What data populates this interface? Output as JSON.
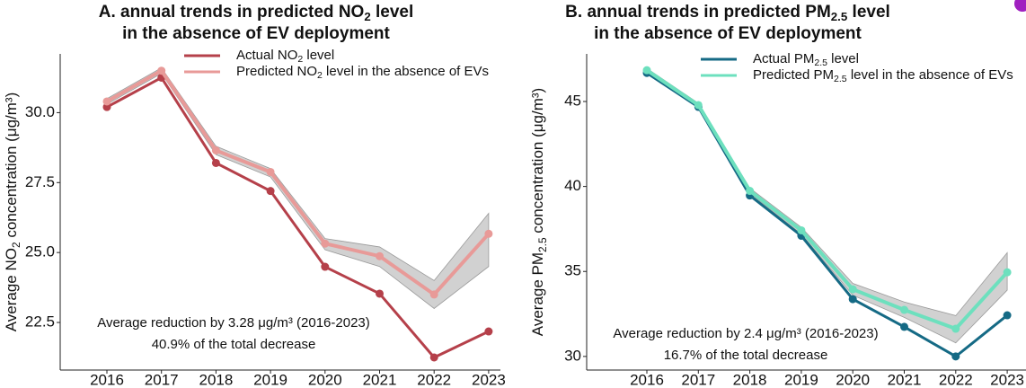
{
  "chart_data": [
    {
      "type": "line",
      "title": [
        [
          "A. annual trends in predicted NO",
          "2",
          " level"
        ],
        [
          "in the absence of EV deployment"
        ]
      ],
      "y_label": [
        "Average NO",
        "2",
        " concentration (μg/m³)"
      ],
      "categories": [
        "2016",
        "2017",
        "2018",
        "2019",
        "2020",
        "2021",
        "2022",
        "2023"
      ],
      "ylim": [
        20.8,
        32.1
      ],
      "yticks": [
        22.5,
        {
          "value": 25,
          "label": "25.0"
        },
        27.5,
        {
          "value": 30,
          "label": "30.0"
        }
      ],
      "band_color": "#9a9a9a",
      "series": [
        {
          "name": [
            "Actual NO",
            "2",
            " level"
          ],
          "color": "#b5404a",
          "values": [
            30.2,
            31.25,
            28.2,
            27.2,
            24.49,
            23.53,
            21.25,
            22.18
          ]
        },
        {
          "name": [
            "Predicted NO",
            "2",
            " level in the absence of EVs"
          ],
          "color": "#e89a98",
          "values": [
            30.4,
            31.5,
            28.65,
            27.88,
            25.32,
            24.87,
            23.5,
            25.67
          ],
          "lower": [
            30.3,
            31.4,
            28.5,
            27.7,
            25.1,
            24.5,
            23.0,
            24.5
          ],
          "upper": [
            30.5,
            31.6,
            28.8,
            28.0,
            25.5,
            25.2,
            24.0,
            26.4
          ]
        }
      ],
      "annotations": [
        "Average reduction by 3.28 μg/m³ (2016-2023)",
        "40.9% of the total decrease"
      ]
    },
    {
      "type": "line",
      "title": [
        [
          "B. annual trends in predicted PM",
          "2.5",
          " level"
        ],
        [
          "in the absence of EV deployment"
        ]
      ],
      "y_label": [
        "Average PM",
        "2.5",
        " concentration (μg/m³)"
      ],
      "categories": [
        "2016",
        "2017",
        "2018",
        "2019",
        "2020",
        "2021",
        "2022",
        "2023"
      ],
      "ylim": [
        29.2,
        47.8
      ],
      "yticks": [
        30,
        35,
        40,
        45
      ],
      "band_color": "#9a9a9a",
      "series": [
        {
          "name": [
            "Actual PM",
            "2.5",
            " level"
          ],
          "color": "#156a85",
          "values": [
            46.68,
            44.68,
            39.47,
            37.1,
            33.37,
            31.74,
            30.0,
            32.42
          ]
        },
        {
          "name": [
            "Predicted PM",
            "2.5",
            " level in the absence of EVs"
          ],
          "color": "#6de0be",
          "values": [
            46.84,
            44.79,
            39.74,
            37.42,
            33.95,
            32.74,
            31.63,
            34.95
          ],
          "lower": [
            46.7,
            44.7,
            39.6,
            37.2,
            33.6,
            32.3,
            30.8,
            33.9
          ],
          "upper": [
            46.95,
            44.9,
            39.9,
            37.6,
            34.3,
            33.2,
            32.4,
            36.1
          ]
        }
      ],
      "annotations": [
        "Average reduction by 2.4 μg/m³ (2016-2023)",
        "16.7% of the total decrease"
      ]
    }
  ]
}
